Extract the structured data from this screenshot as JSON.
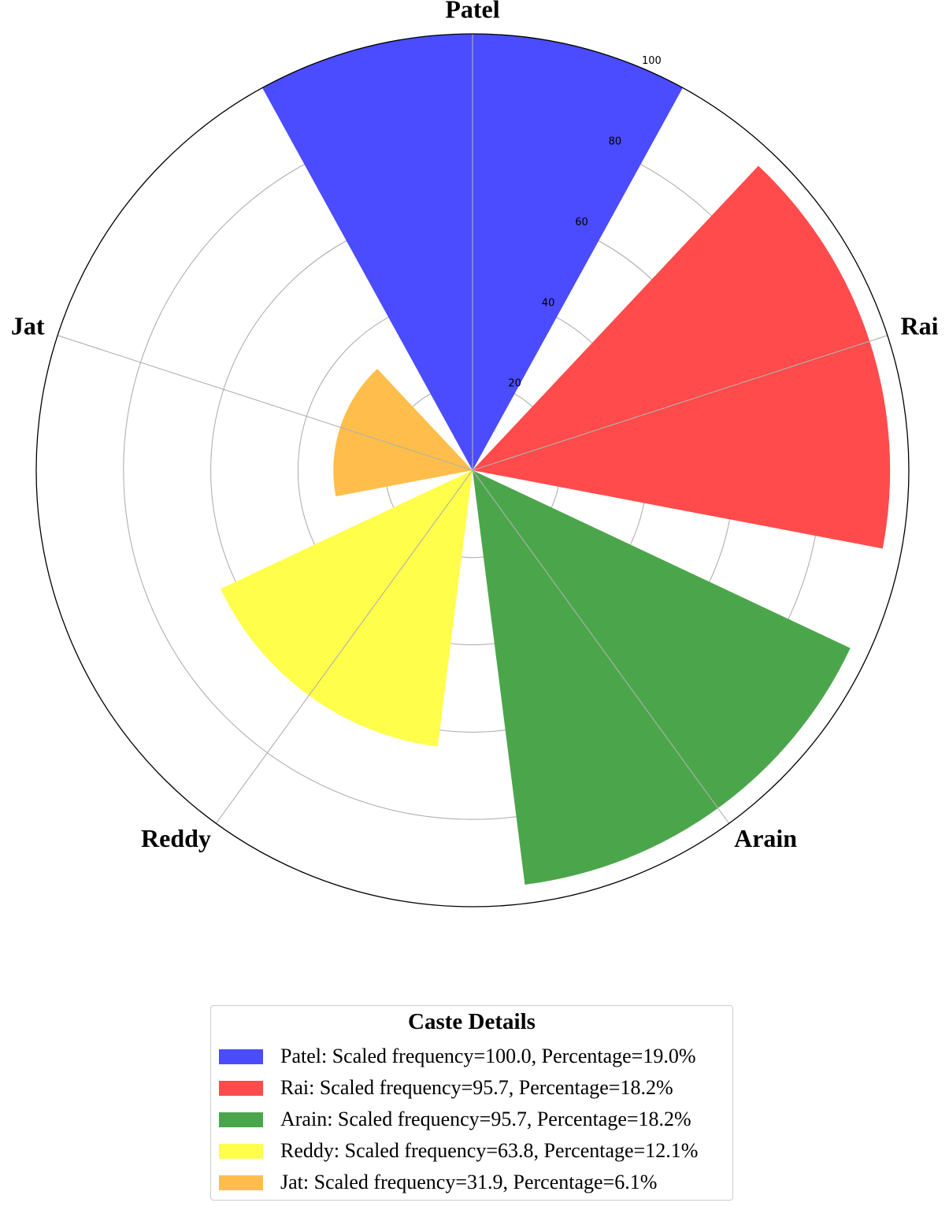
{
  "chart_data": {
    "type": "polar-bar",
    "categories": [
      "Patel",
      "Rai",
      "Arain",
      "Reddy",
      "Jat"
    ],
    "values": [
      100.0,
      95.7,
      95.7,
      63.8,
      31.9
    ],
    "percentages": [
      19.0,
      18.2,
      18.2,
      12.1,
      6.1
    ],
    "colors": [
      "#4b4bff",
      "#ff4b4b",
      "#4ba64b",
      "#ffff4b",
      "#ffbe4b"
    ],
    "radial_ticks": [
      "20",
      "40",
      "60",
      "80",
      "100"
    ],
    "radial_range": [
      0,
      100
    ],
    "grid": true,
    "legend": {
      "title": "Caste Details",
      "placement": "bottom-center",
      "entries": [
        "Patel: Scaled frequency=100.0, Percentage=19.0%",
        "Rai: Scaled frequency=95.7, Percentage=18.2%",
        "Arain: Scaled frequency=95.7, Percentage=18.2%",
        "Reddy: Scaled frequency=63.8, Percentage=12.1%",
        "Jat: Scaled frequency=31.9, Percentage=6.1%"
      ]
    }
  }
}
